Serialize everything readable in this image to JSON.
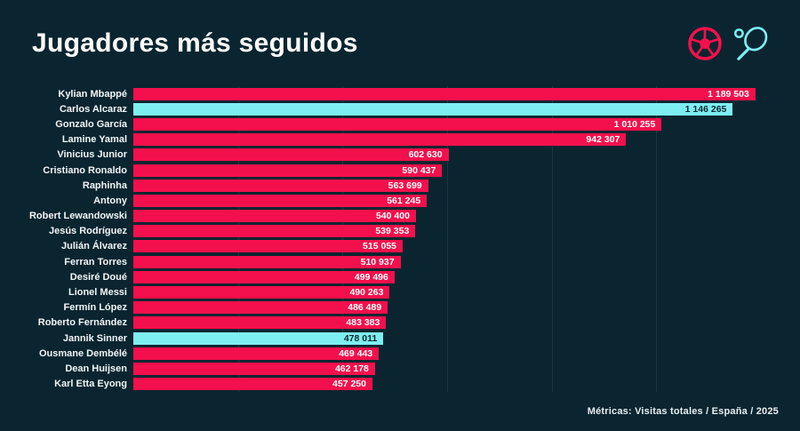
{
  "header": {
    "title": "Jugadores más seguidos",
    "icons": [
      {
        "name": "football-icon",
        "sport": "fútbol"
      },
      {
        "name": "tennis-racket-icon",
        "sport": "tenis"
      }
    ]
  },
  "footer": {
    "text": "Métricas: Visitas totales / España / 2025"
  },
  "colors": {
    "background": "#0A2530",
    "bar": "#F4104C",
    "highlight": "#7DEFF2",
    "label_text": "#F2F6F7",
    "value_text_on_bar": "#FFFFFF",
    "value_text_on_highlight": "#0A2530",
    "gridline": "#1B3742"
  },
  "chart_data": {
    "type": "bar",
    "orientation": "horizontal",
    "title": "Jugadores más seguidos",
    "source_note": "Métricas: Visitas totales / España / 2025",
    "categories": [
      "Kylian Mbappé",
      "Carlos Alcaraz",
      "Gonzalo García",
      "Lamine Yamal",
      "Vinicius Junior",
      "Cristiano Ronaldo",
      "Raphinha",
      "Antony",
      "Robert Lewandowski",
      "Jesús Rodríguez",
      "Julián Álvarez",
      "Ferran Torres",
      "Desiré Doué",
      "Lionel Messi",
      "Fermín López",
      "Roberto Fernández",
      "Jannik Sinner",
      "Ousmane Dembélé",
      "Dean Huijsen",
      "Karl Etta Eyong"
    ],
    "values": [
      1189503,
      1146265,
      1010255,
      942307,
      602630,
      590437,
      563699,
      561245,
      540400,
      539353,
      515055,
      510937,
      499496,
      490263,
      486489,
      483383,
      478011,
      469443,
      462178,
      457250
    ],
    "highlight_indices": [
      1,
      16
    ],
    "highlight_meaning": "tennis players (cyan), footballers (pink)",
    "xlim": [
      0,
      1200000
    ],
    "gridline_interval": 200000,
    "value_labels_inside_bars": true,
    "legend": null
  }
}
